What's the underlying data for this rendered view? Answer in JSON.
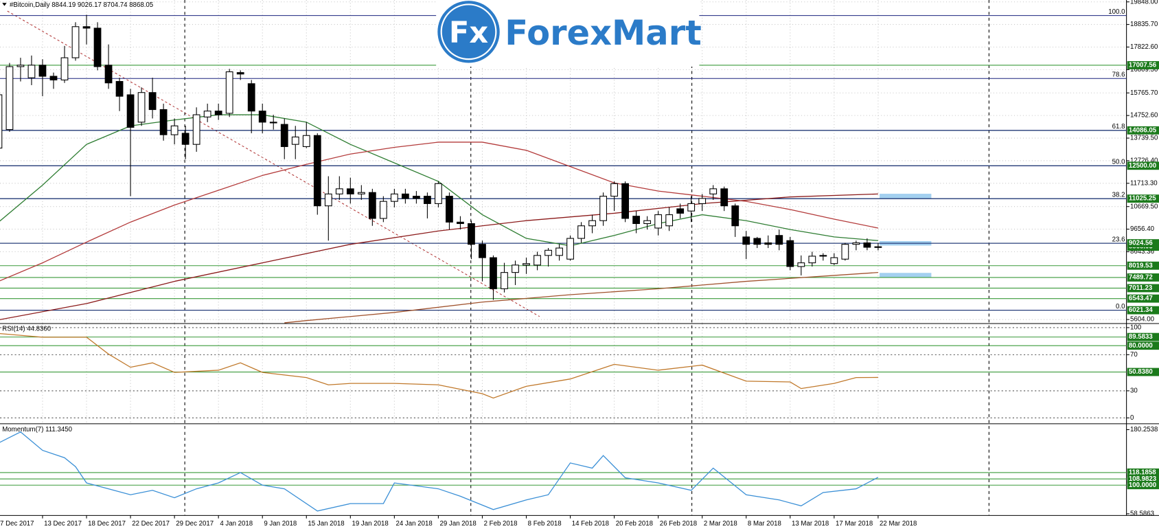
{
  "chart_data": [
    {
      "type": "candlestick",
      "title": "#Bitcoin,Daily  8844.19 9026.17 8704.74 8868.05",
      "watermark_mark": "Fx",
      "watermark": "ForexMart",
      "categories": [
        "7 Dec 2017",
        null,
        null,
        null,
        "13 Dec 2017",
        null,
        null,
        null,
        "18 Dec 2017",
        null,
        null,
        null,
        "22 Dec 2017",
        null,
        null,
        null,
        "29 Dec 2017",
        null,
        null,
        null,
        "4 Jan 2018",
        null,
        null,
        null,
        "9 Jan 2018",
        null,
        null,
        null,
        "15 Jan 2018",
        null,
        null,
        null,
        "19 Jan 2018",
        null,
        null,
        null,
        "24 Jan 2018",
        null,
        null,
        null,
        "29 Jan 2018",
        null,
        null,
        null,
        "2 Feb 2018",
        null,
        null,
        null,
        "8 Feb 2018",
        null,
        null,
        null,
        "14 Feb 2018",
        null,
        null,
        null,
        "20 Feb 2018",
        null,
        null,
        null,
        "26 Feb 2018",
        null,
        null,
        null,
        "2 Mar 2018",
        null,
        null,
        null,
        "8 Mar 2018",
        null,
        null,
        null,
        "13 Mar 2018",
        null,
        null,
        null,
        "17 Mar 2018",
        null,
        null,
        null,
        "22 Mar 2018"
      ],
      "open": [
        13292,
        14122,
        16944,
        16446,
        17010,
        16512,
        16346,
        17342,
        18737,
        18670,
        17010,
        16280,
        15682,
        14454,
        15782,
        15018,
        13890,
        13956,
        13458,
        14686,
        14952,
        14852,
        16678,
        16180,
        14952,
        14454,
        14354,
        13458,
        13358,
        13856,
        10702,
        11234,
        11466,
        11234,
        11300,
        10138,
        10902,
        11234,
        11134,
        11134,
        10802,
        11134,
        9972,
        9906,
        8976,
        8378,
        6984,
        7714,
        8046,
        8046,
        8478,
        8478,
        8312,
        9242,
        9806,
        10038,
        11134,
        11698,
        10238,
        9906,
        9706,
        9806,
        10570,
        10470,
        10802,
        11234,
        11466,
        10702,
        9308,
        9242,
        9042,
        9374,
        9142,
        7980,
        8146,
        8445,
        8113,
        8312,
        8976,
        9042,
        8844.19
      ],
      "high": [
        15948,
        17110,
        17342,
        17442,
        17276,
        16678,
        17874,
        18936,
        19268,
        18936,
        17940,
        16446,
        15948,
        16014,
        16446,
        15284,
        14620,
        14288,
        15118,
        15284,
        15284,
        16844,
        16778,
        16346,
        15284,
        14786,
        14620,
        14288,
        14454,
        13956,
        12030,
        12030,
        11964,
        11632,
        11466,
        11134,
        11466,
        11466,
        11366,
        11300,
        11798,
        11300,
        10238,
        10038,
        9142,
        8478,
        8146,
        8246,
        8378,
        8644,
        8810,
        8976,
        9374,
        9972,
        10304,
        11300,
        11798,
        11798,
        10470,
        10238,
        10470,
        10636,
        10802,
        11134,
        11234,
        11632,
        11566,
        10802,
        9574,
        9308,
        9374,
        9640,
        9308,
        8478,
        8644,
        8578,
        8578,
        9042,
        9142,
        9242,
        9026.17
      ],
      "low": [
        13126,
        14022,
        16280,
        16114,
        15616,
        15948,
        16214,
        17210,
        17940,
        16778,
        15948,
        14952,
        11134,
        14288,
        14620,
        13624,
        13458,
        12794,
        13126,
        14454,
        14554,
        14686,
        16346,
        13956,
        13956,
        14122,
        12794,
        12794,
        13292,
        10304,
        9142,
        10968,
        10802,
        10968,
        9806,
        9972,
        10636,
        10802,
        10802,
        10138,
        10636,
        9640,
        9640,
        8312,
        7316,
        6486,
        6818,
        7150,
        7648,
        7814,
        7980,
        8246,
        8246,
        9042,
        9474,
        9806,
        10470,
        9972,
        9474,
        9640,
        9374,
        9574,
        10138,
        9972,
        10470,
        10968,
        10470,
        9308,
        8312,
        8810,
        8810,
        8710,
        7814,
        7582,
        7980,
        8246,
        8046,
        8246,
        8710,
        8710,
        8704.74
      ],
      "close": [
        15682,
        16944,
        17010,
        17010,
        16512,
        16346,
        17342,
        18737,
        18670,
        16944,
        16214,
        15616,
        14222,
        15782,
        15018,
        13890,
        14288,
        13458,
        14786,
        14952,
        14786,
        16712,
        16612,
        14952,
        14454,
        14454,
        13358,
        13790,
        13856,
        10702,
        11234,
        11466,
        11234,
        11300,
        10138,
        10902,
        11234,
        11034,
        11034,
        10802,
        11698,
        9972,
        9906,
        8976,
        8378,
        6984,
        7714,
        8046,
        8113,
        8478,
        8710,
        8810,
        9242,
        9806,
        10038,
        11134,
        11698,
        10138,
        9906,
        10038,
        10304,
        10304,
        10370,
        10802,
        11034,
        11466,
        10702,
        9806,
        8976,
        8976,
        8976,
        8976,
        7980,
        8146,
        8445,
        8478,
        8378,
        8976,
        9042,
        8844.19,
        8868.05
      ],
      "overlays": [
        {
          "color": "#2e7d32",
          "x": [
            0,
            4,
            8,
            12,
            16,
            20,
            24,
            28,
            32,
            36,
            40,
            44,
            48,
            52,
            56,
            60,
            64,
            68,
            72,
            76,
            80
          ],
          "values": [
            9972,
            11632,
            13458,
            14288,
            14554,
            14786,
            14786,
            14454,
            13458,
            12628,
            11798,
            10304,
            9242,
            8910,
            9374,
            9906,
            10304,
            10038,
            9640,
            9308,
            9142
          ]
        },
        {
          "color": "#b33a3a",
          "x": [
            0,
            4,
            8,
            12,
            16,
            20,
            24,
            28,
            32,
            36,
            40,
            44,
            48,
            52,
            56,
            60,
            64,
            68,
            72,
            76,
            80
          ],
          "values": [
            7316,
            8146,
            9076,
            9972,
            10736,
            11400,
            12064,
            12562,
            13026,
            13325,
            13558,
            13558,
            13192,
            12462,
            11732,
            11366,
            11134,
            10902,
            10536,
            10105,
            9706
          ]
        },
        {
          "color": "#8b1a1a",
          "x": [
            0,
            8,
            16,
            24,
            32,
            40,
            48,
            56,
            64,
            72,
            80
          ],
          "values": [
            5590,
            6320,
            7316,
            8146,
            8976,
            9574,
            10038,
            10370,
            10802,
            11101,
            11234
          ]
        },
        {
          "color": "#a0522d",
          "x": [
            26,
            28,
            36,
            44,
            52,
            60,
            68,
            76,
            80
          ],
          "values": [
            5457,
            5557,
            5922,
            6386,
            6718,
            6984,
            7316,
            7582,
            7714
          ]
        }
      ],
      "levels": [
        17007.56,
        14086.05,
        {
          "value": 12500,
          "label": "12500.00"
        },
        11025.25,
        9024.56,
        8019.53,
        7489.72,
        7011.23,
        6543.47,
        6021.34
      ],
      "level_color": "#3a9a3a",
      "fib_levels": [
        {
          "label": "100.0",
          "value": 19235
        },
        {
          "label": "78.6",
          "value": 16413
        },
        {
          "label": "61.8",
          "value": 14086.05
        },
        {
          "label": "50.0",
          "value": 12500
        },
        {
          "label": "38.2",
          "value": 11025.25
        },
        {
          "label": "23.6",
          "value": 9024.56
        },
        {
          "label": "0.0",
          "value": 6021.34
        }
      ],
      "fib_color": "#1a237e",
      "up_color": "#ffffff",
      "down_color": "#000000",
      "xlim": [
        0.13,
        102.59
      ],
      "ylim": [
        5440,
        19932
      ],
      "yticks": [
        {
          "value": 19848,
          "label": "19848.00"
        },
        {
          "value": 18835.7,
          "label": "18835.70"
        },
        {
          "value": 17822.6,
          "label": "17822.60"
        },
        {
          "value": 16809.5,
          "label": "16809.50"
        },
        {
          "value": 15765.7,
          "label": "15765.70"
        },
        {
          "value": 14752.6,
          "label": "14752.60"
        },
        {
          "value": 13739.5,
          "label": "13739.50"
        },
        {
          "value": 12726.4,
          "label": "12726.40"
        },
        {
          "value": 11713.3,
          "label": "11713.30"
        },
        {
          "value": 10669.5,
          "label": "10669.50"
        },
        {
          "value": 9656.4,
          "label": "9656.40"
        },
        8643.36,
        {
          "value": 5604,
          "label": "5604.00"
        }
      ],
      "grid": true
    },
    {
      "type": "line",
      "title": "RSI(14) 44.8360",
      "color": "#c0782a",
      "x": [
        0,
        4,
        8,
        10,
        12,
        14,
        16,
        20,
        22,
        24,
        28,
        30,
        32,
        36,
        40,
        44,
        45,
        48,
        52,
        56,
        60,
        64,
        68,
        72,
        73,
        76,
        78,
        80
      ],
      "values": [
        93.5,
        89.4,
        89.4,
        70.7,
        56.1,
        61,
        50.4,
        52.8,
        61,
        50.4,
        44.7,
        36.6,
        38.2,
        38.2,
        36.6,
        26.8,
        22,
        35,
        43.1,
        59.3,
        52.8,
        58.5,
        40.7,
        39.8,
        32.5,
        38.2,
        44.7,
        44.836
      ],
      "levels": [
        89.5833,
        {
          "value": 80,
          "label": "80.0000"
        },
        {
          "value": 50.838,
          "label": "50.8380"
        }
      ],
      "level_color": "#3a9a3a",
      "xlim": [
        0.13,
        102.59
      ],
      "ylim": [
        -5.7,
        104.1
      ],
      "yticks": [
        100,
        70,
        30,
        0
      ],
      "grid": true
    },
    {
      "type": "line",
      "title": "Momentum(7) 111.3450",
      "color": "#3a8fd6",
      "x": [
        0,
        2,
        4,
        6,
        7,
        8,
        10,
        12,
        14,
        16,
        18,
        20,
        22,
        24,
        26,
        29,
        32,
        35,
        36,
        40,
        42,
        45,
        48,
        50,
        52,
        54,
        55,
        57,
        60,
        63,
        65,
        68,
        71,
        73,
        75,
        78,
        80
      ],
      "values": [
        161,
        177,
        150.3,
        139.6,
        126.7,
        103.2,
        94.7,
        86.1,
        92.5,
        81.8,
        94.7,
        103.2,
        118.2,
        100,
        94.7,
        62.6,
        73.3,
        73.3,
        103.2,
        94.7,
        84,
        64.7,
        78.6,
        86.1,
        132.1,
        124.6,
        142.8,
        110.7,
        103.2,
        92.5,
        124.6,
        86.1,
        78.6,
        70,
        89.3,
        94.7,
        111.345
      ],
      "levels": [
        118.1858,
        108.9823,
        {
          "value": 100,
          "label": "100.0000"
        }
      ],
      "level_color": "#3a9a3a",
      "xlim": [
        0.13,
        102.59
      ],
      "ylim": [
        57.2,
        187.7
      ],
      "yticks": [
        180.2538,
        58.5863
      ],
      "grid": false
    }
  ]
}
